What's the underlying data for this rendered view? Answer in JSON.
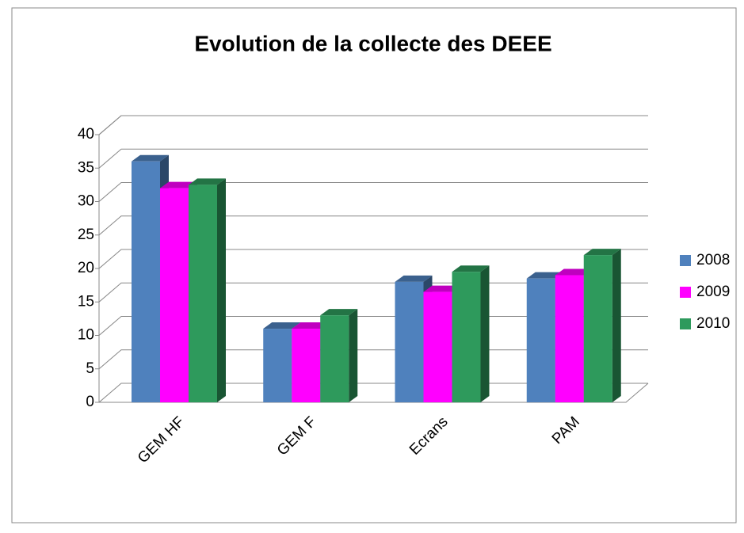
{
  "chart_data": {
    "type": "bar3d",
    "title": "Evolution de la collecte des DEEE",
    "categories": [
      "GEM HF",
      "GEM F",
      "Ecrans",
      "PAM"
    ],
    "series": [
      {
        "name": "2008",
        "color": "#4f81bd",
        "values": [
          36,
          11,
          18,
          18.5
        ]
      },
      {
        "name": "2009",
        "color": "#ff00ff",
        "values": [
          32,
          11,
          16.5,
          19
        ]
      },
      {
        "name": "2010",
        "color": "#2e9a5c",
        "values": [
          32.5,
          13,
          19.5,
          22
        ]
      }
    ],
    "ylim": [
      0,
      40
    ],
    "yticks": [
      0,
      5,
      10,
      15,
      20,
      25,
      30,
      35,
      40
    ],
    "grid": true,
    "legend": "right"
  }
}
